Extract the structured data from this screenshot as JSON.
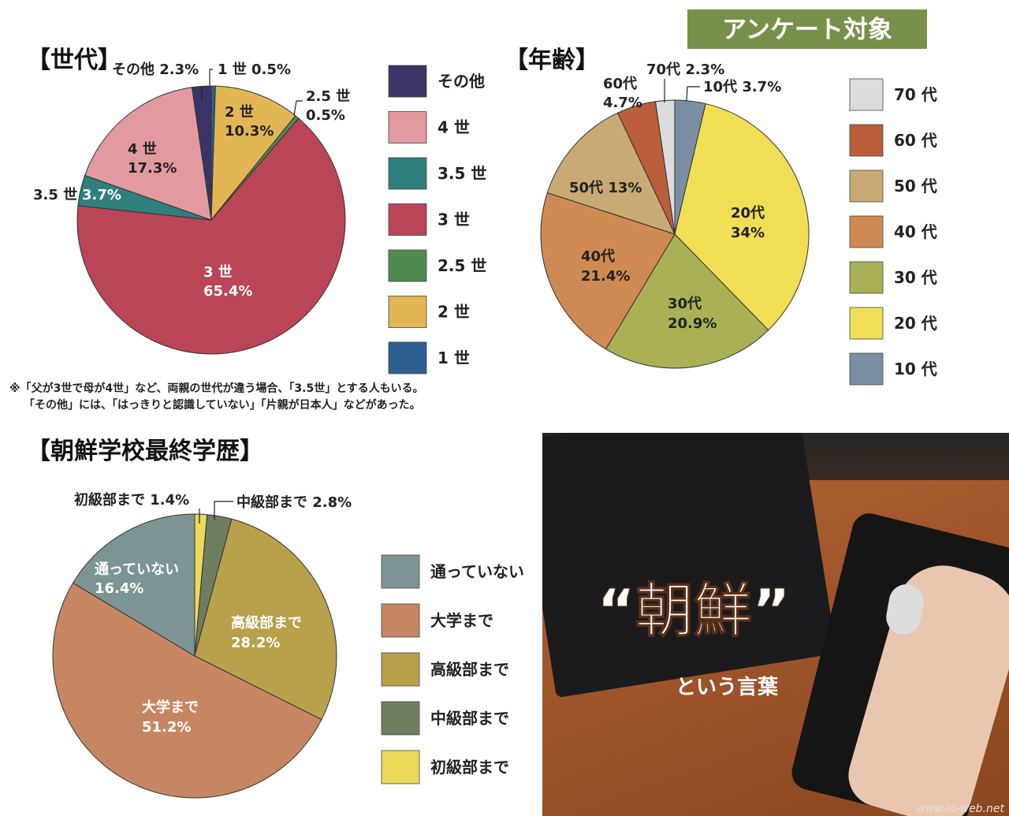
{
  "banner": "アンケート対象",
  "gen": {
    "title": "【世代】",
    "legend": [
      {
        "label": "その他",
        "color": "#3a3466"
      },
      {
        "label": "4 世",
        "color": "#e29aa0"
      },
      {
        "label": "3.5 世",
        "color": "#2f7f7c"
      },
      {
        "label": "3 世",
        "color": "#b94557"
      },
      {
        "label": "2.5 世",
        "color": "#4f8a4e"
      },
      {
        "label": "2 世",
        "color": "#e2b654"
      },
      {
        "label": "1 世",
        "color": "#2d5f92"
      }
    ],
    "labels": {
      "l1": "その他 2.3%",
      "l2": "1 世 0.5%",
      "l3a": "2.5 世",
      "l3b": "0.5%",
      "l4a": "2 世",
      "l4b": "10.3%",
      "l5a": "4 世",
      "l5b": "17.3%",
      "l6": "3.5 世",
      "l7": "3.7%",
      "l8a": "3 世",
      "l8b": "65.4%"
    },
    "note1": "※「父が3世で母が4世」など、両親の世代が違う場合、「3.5世」とする人もいる。",
    "note2": "「その他」には、「はっきりと認識していない」「片親が日本人」などがあった。"
  },
  "age": {
    "title": "【年齢】",
    "legend": [
      {
        "label": "70 代",
        "color": "#dcdcdc"
      },
      {
        "label": "60 代",
        "color": "#ba5e3c"
      },
      {
        "label": "50 代",
        "color": "#c9aa74"
      },
      {
        "label": "40 代",
        "color": "#cf8a53"
      },
      {
        "label": "30 代",
        "color": "#a9b154"
      },
      {
        "label": "20 代",
        "color": "#f0de55"
      },
      {
        "label": "10 代",
        "color": "#7b8fa2"
      }
    ],
    "labels": {
      "a1": "70代 2.3%",
      "a2a": "60代",
      "a2b": "4.7%",
      "a3": "10代 3.7%",
      "a4": "50代 13%",
      "a5a": "20代",
      "a5b": "34%",
      "a6a": "40代",
      "a6b": "21.4%",
      "a7a": "30代",
      "a7b": "20.9%"
    }
  },
  "edu": {
    "title": "【朝鮮学校最終学歴】",
    "legend": [
      {
        "label": "通っていない",
        "color": "#7d9495"
      },
      {
        "label": "大学まで",
        "color": "#c78662"
      },
      {
        "label": "高級部まで",
        "color": "#b9a04b"
      },
      {
        "label": "中級部まで",
        "color": "#6f7d61"
      },
      {
        "label": "初級部まで",
        "color": "#ecd95a"
      }
    ],
    "labels": {
      "e1": "初級部まで 1.4%",
      "e2": "中級部まで 2.8%",
      "e3a": "通っていない",
      "e3b": "16.4%",
      "e4a": "高級部まで",
      "e4b": "28.2%",
      "e5a": "大学まで",
      "e5b": "51.2%"
    }
  },
  "photo": {
    "big": "“朝鮮”",
    "small": "という言葉",
    "watermark": "www.io-web.net"
  },
  "chart_data": [
    {
      "type": "pie",
      "title": "【世代】",
      "categories": [
        "1 世",
        "2 世",
        "2.5 世",
        "3 世",
        "3.5 世",
        "4 世",
        "その他"
      ],
      "values": [
        0.5,
        10.3,
        0.5,
        65.4,
        3.7,
        17.3,
        2.3
      ],
      "colors": [
        "#2d5f92",
        "#e2b654",
        "#4f8a4e",
        "#b94557",
        "#2f7f7c",
        "#e29aa0",
        "#3a3466"
      ],
      "legend": "right"
    },
    {
      "type": "pie",
      "title": "【年齢】",
      "categories": [
        "10 代",
        "20 代",
        "30 代",
        "40 代",
        "50 代",
        "60 代",
        "70 代"
      ],
      "values": [
        3.7,
        34,
        20.9,
        21.4,
        13,
        4.7,
        2.3
      ],
      "colors": [
        "#7b8fa2",
        "#f0de55",
        "#a9b154",
        "#cf8a53",
        "#c9aa74",
        "#ba5e3c",
        "#dcdcdc"
      ],
      "legend": "right"
    },
    {
      "type": "pie",
      "title": "【朝鮮学校最終学歴】",
      "categories": [
        "初級部まで",
        "中級部まで",
        "高級部まで",
        "大学まで",
        "通っていない"
      ],
      "values": [
        1.4,
        2.8,
        28.2,
        51.2,
        16.4
      ],
      "colors": [
        "#ecd95a",
        "#6f7d61",
        "#b9a04b",
        "#c78662",
        "#7d9495"
      ],
      "legend": "right"
    }
  ]
}
